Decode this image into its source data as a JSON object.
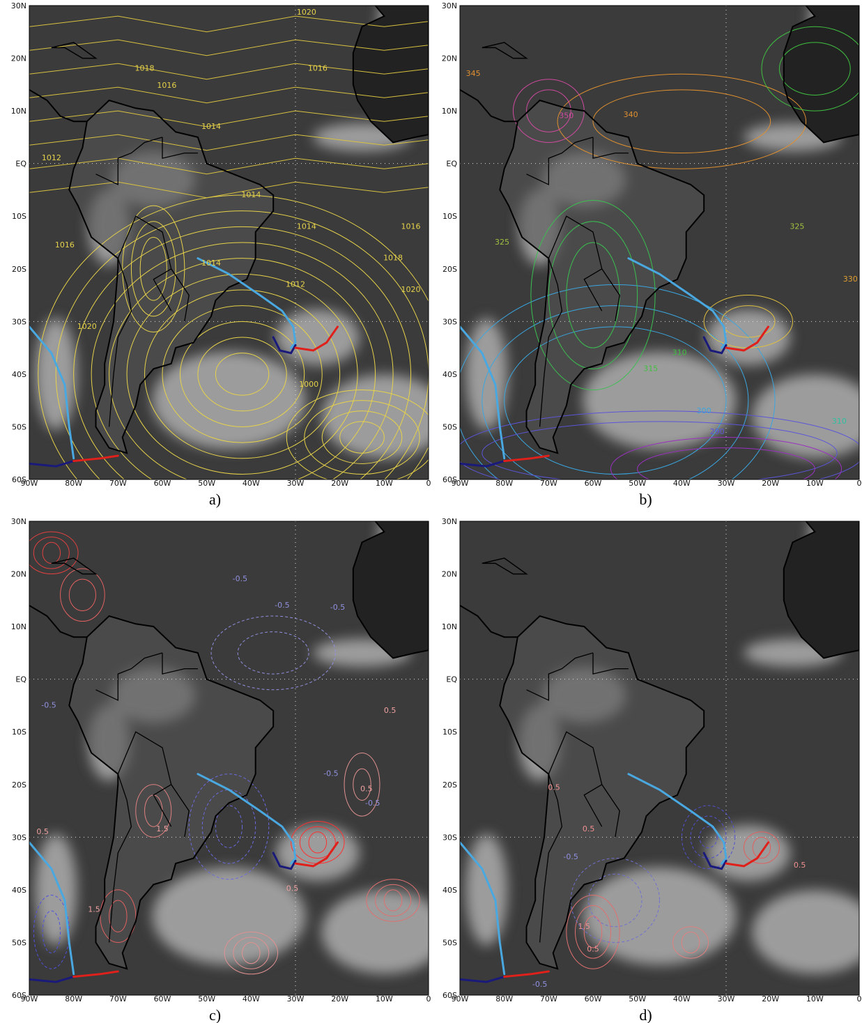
{
  "lat_labels": [
    "30N",
    "20N",
    "10N",
    "EQ",
    "10S",
    "20S",
    "30S",
    "40S",
    "50S",
    "60S"
  ],
  "lon_labels": [
    "90W",
    "80W",
    "70W",
    "60W",
    "50W",
    "40W",
    "30W",
    "20W",
    "10W",
    "0"
  ],
  "panels": [
    {
      "label": "a)",
      "contour_labels": [
        "1020",
        "1018",
        "1016",
        "1016",
        "1014",
        "1012",
        "1014",
        "1014",
        "1016",
        "1018",
        "1020",
        "1016",
        "1014",
        "1012",
        "1020",
        "1000"
      ]
    },
    {
      "label": "b)",
      "contour_labels": [
        "345",
        "340",
        "350",
        "330",
        "325",
        "325",
        "310",
        "315",
        "300",
        "290",
        "310"
      ]
    },
    {
      "label": "c)",
      "contour_labels": [
        "-0.5",
        "-0.5",
        "-0.5",
        "0.5",
        "0.5",
        "-0.5",
        "-0.5",
        "0.5",
        "1.5",
        "1.5",
        "0.5",
        "-0.5"
      ]
    },
    {
      "label": "d)",
      "contour_labels": [
        "0.5",
        "0.5",
        "-0.5",
        "0.5",
        "1.5",
        "-0.5",
        "0.5"
      ]
    }
  ]
}
